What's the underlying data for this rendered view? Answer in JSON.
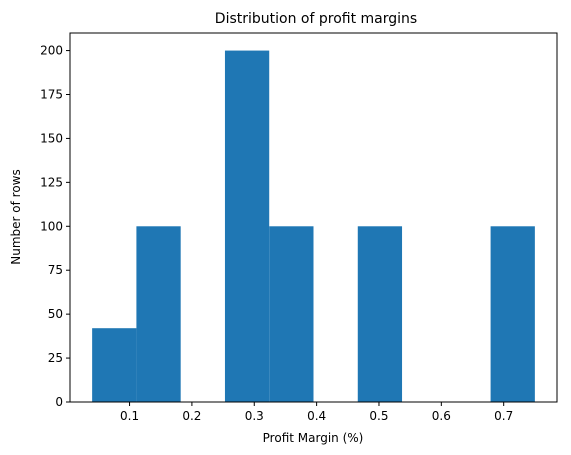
{
  "chart_data": {
    "type": "bar",
    "title": "Distribution of profit margins",
    "xlabel": "Profit Margin (%)",
    "ylabel": "Number of rows",
    "bin_edges": [
      0.04,
      0.111,
      0.182,
      0.253,
      0.324,
      0.395,
      0.466,
      0.537,
      0.608,
      0.679,
      0.75
    ],
    "values": [
      42,
      100,
      0,
      200,
      100,
      0,
      100,
      0,
      0,
      100
    ],
    "xlim": [
      0.0045,
      0.7855
    ],
    "ylim": [
      0,
      210
    ],
    "xticks": [
      0.1,
      0.2,
      0.3,
      0.4,
      0.5,
      0.6,
      0.7
    ],
    "xtick_labels": [
      "0.1",
      "0.2",
      "0.3",
      "0.4",
      "0.5",
      "0.6",
      "0.7"
    ],
    "yticks": [
      0,
      25,
      50,
      75,
      100,
      125,
      150,
      175,
      200
    ],
    "ytick_labels": [
      "0",
      "25",
      "50",
      "75",
      "100",
      "125",
      "150",
      "175",
      "200"
    ],
    "bar_color": "#1f77b4",
    "grid": false,
    "legend": "none"
  }
}
